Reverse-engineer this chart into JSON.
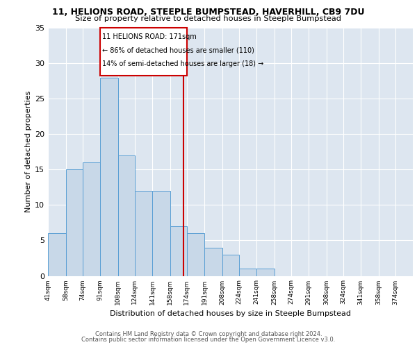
{
  "title1": "11, HELIONS ROAD, STEEPLE BUMPSTEAD, HAVERHILL, CB9 7DU",
  "title2": "Size of property relative to detached houses in Steeple Bumpstead",
  "xlabel": "Distribution of detached houses by size in Steeple Bumpstead",
  "ylabel": "Number of detached properties",
  "bin_labels": [
    "41sqm",
    "58sqm",
    "74sqm",
    "91sqm",
    "108sqm",
    "124sqm",
    "141sqm",
    "158sqm",
    "174sqm",
    "191sqm",
    "208sqm",
    "224sqm",
    "241sqm",
    "258sqm",
    "274sqm",
    "291sqm",
    "308sqm",
    "324sqm",
    "341sqm",
    "358sqm",
    "374sqm"
  ],
  "bin_edges": [
    41,
    58,
    74,
    91,
    108,
    124,
    141,
    158,
    174,
    191,
    208,
    224,
    241,
    258,
    274,
    291,
    308,
    324,
    341,
    358,
    374
  ],
  "bar_heights": [
    6,
    15,
    16,
    28,
    17,
    12,
    12,
    7,
    6,
    4,
    3,
    1,
    1,
    0,
    0,
    0,
    0,
    0,
    0,
    0
  ],
  "bar_color": "#c8d8e8",
  "bar_edge_color": "#5a9fd4",
  "property_size": 171,
  "vline_color": "#cc0000",
  "annotation_line1": "11 HELIONS ROAD: 171sqm",
  "annotation_line2": "← 86% of detached houses are smaller (110)",
  "annotation_line3": "14% of semi-detached houses are larger (18) →",
  "annotation_box_color": "#cc0000",
  "ylim": [
    0,
    35
  ],
  "yticks": [
    0,
    5,
    10,
    15,
    20,
    25,
    30,
    35
  ],
  "background_color": "#dde6f0",
  "footer_line1": "Contains HM Land Registry data © Crown copyright and database right 2024.",
  "footer_line2": "Contains public sector information licensed under the Open Government Licence v3.0."
}
